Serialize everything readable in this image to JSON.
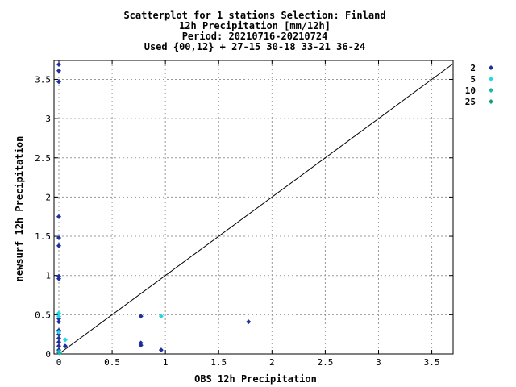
{
  "chart_data": {
    "type": "scatter",
    "title_lines": [
      "Scatterplot for    1 stations Selection: Finland",
      "12h Precipitation [mm/12h]",
      "Period: 20210716-20210724",
      "Used {00,12} + 27-15 30-18 33-21 36-24"
    ],
    "xlabel": "OBS 12h Precipitation",
    "ylabel": "newsurf 12h Precipitation",
    "xlim": [
      0,
      3.7
    ],
    "ylim": [
      0,
      3.7
    ],
    "x_ticks": [
      "0",
      "0.5",
      "1",
      "1.5",
      "2",
      "2.5",
      "3",
      "3.5"
    ],
    "x_tick_values": [
      0,
      0.5,
      1,
      1.5,
      2,
      2.5,
      3,
      3.5
    ],
    "y_ticks": [
      "0",
      "0.5",
      "1",
      "1.5",
      "2",
      "2.5",
      "3",
      "3.5"
    ],
    "y_tick_values": [
      0,
      0.5,
      1,
      1.5,
      2,
      2.5,
      3,
      3.5
    ],
    "grid": true,
    "diagonal": true,
    "legend_position": "top-right",
    "series": [
      {
        "name": "2",
        "color": "#1f2f9e",
        "points": [
          [
            0,
            3.69
          ],
          [
            0,
            3.61
          ],
          [
            0,
            3.47
          ],
          [
            0,
            1.75
          ],
          [
            0,
            1.48
          ],
          [
            0,
            1.38
          ],
          [
            0,
            0.99
          ],
          [
            0,
            0.96
          ],
          [
            0,
            0.45
          ],
          [
            0,
            0.41
          ],
          [
            0,
            0.3
          ],
          [
            0,
            0.25
          ],
          [
            0,
            0.2
          ],
          [
            0,
            0.15
          ],
          [
            0,
            0.1
          ],
          [
            0,
            0.05
          ],
          [
            0,
            0.02
          ],
          [
            0.06,
            0.1
          ],
          [
            0.77,
            0.48
          ],
          [
            0.77,
            0.14
          ],
          [
            0.77,
            0.11
          ],
          [
            0.96,
            0.05
          ],
          [
            1.78,
            0.41
          ]
        ]
      },
      {
        "name": "5",
        "color": "#24d6e0",
        "points": [
          [
            0,
            0.52
          ],
          [
            0,
            0.48
          ],
          [
            0,
            0.28
          ],
          [
            0.06,
            0.18
          ],
          [
            0.96,
            0.48
          ]
        ]
      },
      {
        "name": "10",
        "color": "#1ab8a6",
        "points": [
          [
            0,
            0.03
          ],
          [
            0.01,
            0.01
          ]
        ]
      },
      {
        "name": "25",
        "color": "#0f9e72",
        "points": []
      }
    ]
  }
}
